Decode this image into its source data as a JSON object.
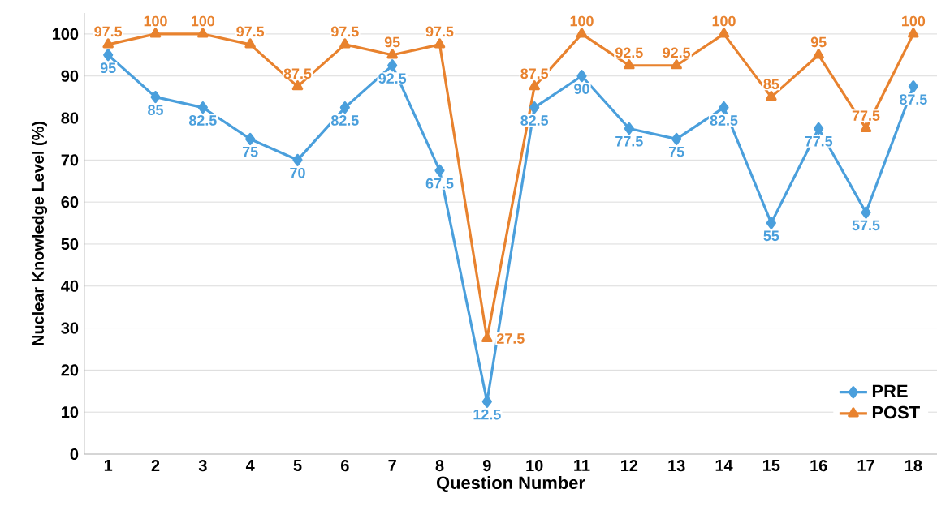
{
  "chart_data": {
    "type": "line",
    "xlabel": "Question Number",
    "ylabel": "Nuclear Knowledge Level (%)",
    "categories": [
      "1",
      "2",
      "3",
      "4",
      "5",
      "6",
      "7",
      "8",
      "9",
      "10",
      "11",
      "12",
      "13",
      "14",
      "15",
      "16",
      "17",
      "18"
    ],
    "series": [
      {
        "name": "PRE",
        "color": "#4a9fdc",
        "marker": "diamond",
        "values": [
          95,
          85,
          82.5,
          75,
          70,
          82.5,
          92.5,
          67.5,
          12.5,
          82.5,
          90,
          77.5,
          75,
          82.5,
          55,
          77.5,
          57.5,
          87.5
        ]
      },
      {
        "name": "POST",
        "color": "#e8822e",
        "marker": "triangle",
        "values": [
          97.5,
          100,
          100,
          97.5,
          87.5,
          97.5,
          95,
          97.5,
          27.5,
          87.5,
          100,
          92.5,
          92.5,
          100,
          85,
          95,
          77.5,
          100
        ]
      }
    ],
    "ylim": [
      0,
      105
    ],
    "yticks": [
      0,
      10,
      20,
      30,
      40,
      50,
      60,
      70,
      80,
      90,
      100
    ],
    "grid": "y",
    "legend": "bottom right",
    "data_labels": true,
    "line_style": "solid"
  }
}
